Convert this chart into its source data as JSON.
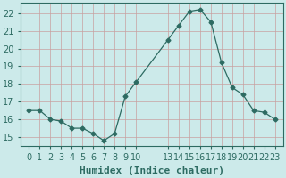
{
  "x_indices": [
    0,
    1,
    2,
    3,
    4,
    5,
    6,
    7,
    8,
    9,
    10,
    13,
    14,
    15,
    16,
    17,
    18,
    19,
    20,
    21,
    22,
    23
  ],
  "y": [
    16.5,
    16.5,
    16.0,
    15.9,
    15.5,
    15.5,
    15.2,
    14.8,
    15.2,
    17.3,
    18.1,
    20.5,
    21.3,
    22.1,
    22.2,
    21.5,
    19.2,
    17.8,
    17.4,
    16.5,
    16.4,
    16.0
  ],
  "xtick_labels": [
    "0",
    "1",
    "2",
    "3",
    "4",
    "5",
    "6",
    "7",
    "8",
    "9",
    "10",
    "13",
    "14",
    "15",
    "16",
    "17",
    "18",
    "19",
    "20",
    "21",
    "22",
    "23"
  ],
  "line_color": "#2d6b62",
  "marker": "D",
  "marker_size": 2.5,
  "bg_color": "#cceaea",
  "grid_color": "#c8a0a0",
  "xlabel": "Humidex (Indice chaleur)",
  "ylim": [
    14.5,
    22.6
  ],
  "yticks": [
    15,
    16,
    17,
    18,
    19,
    20,
    21,
    22
  ],
  "xlim": [
    -0.8,
    23.8
  ],
  "xlabel_fontsize": 8,
  "tick_fontsize": 7
}
